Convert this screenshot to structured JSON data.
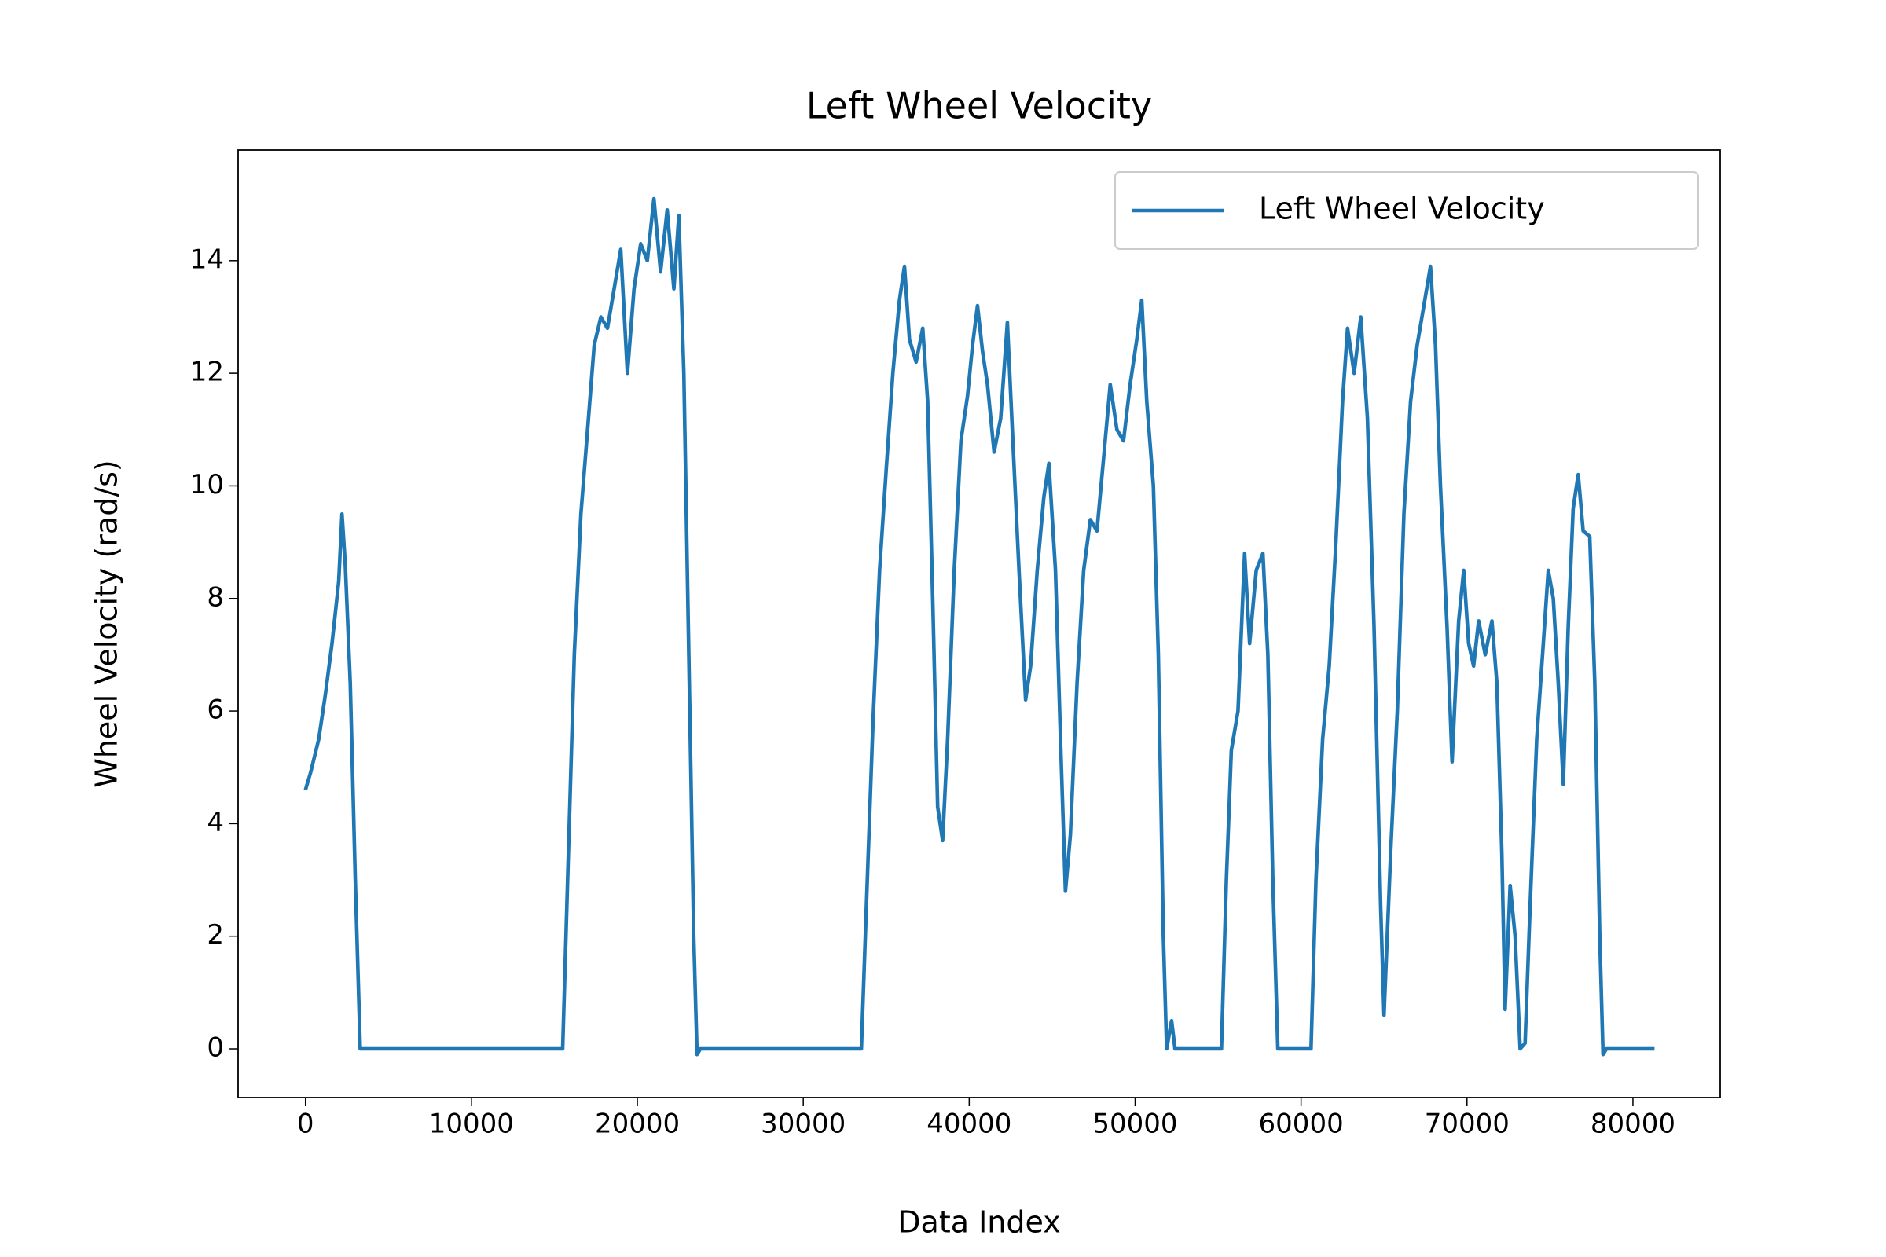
{
  "chart_data": {
    "type": "line",
    "title": "Left Wheel Velocity",
    "x_label": "Data Index",
    "y_label": "Wheel Velocity (rad/s)",
    "xlim": [
      -4060,
      85260
    ],
    "ylim": [
      -0.865,
      15.965
    ],
    "xticks": [
      0,
      10000,
      20000,
      30000,
      40000,
      50000,
      60000,
      70000,
      80000
    ],
    "yticks": [
      0,
      2,
      4,
      6,
      8,
      10,
      12,
      14
    ],
    "legend": "upper right",
    "x": [
      0,
      300,
      800,
      1200,
      1600,
      2000,
      2200,
      2400,
      2700,
      3000,
      3300,
      15500,
      15800,
      16200,
      16600,
      17000,
      17400,
      17800,
      18200,
      18600,
      19000,
      19400,
      19800,
      20200,
      20600,
      21000,
      21400,
      21800,
      22200,
      22500,
      22800,
      23100,
      23400,
      23600,
      23800,
      33500,
      33800,
      34200,
      34600,
      35000,
      35400,
      35800,
      36100,
      36400,
      36800,
      37200,
      37500,
      37800,
      38100,
      38400,
      38700,
      39100,
      39500,
      39900,
      40200,
      40500,
      40800,
      41100,
      41500,
      41900,
      42300,
      42600,
      43000,
      43400,
      43700,
      44100,
      44500,
      44800,
      45200,
      45500,
      45800,
      46100,
      46500,
      46900,
      47300,
      47700,
      48100,
      48500,
      48900,
      49300,
      49700,
      50100,
      50400,
      50700,
      51100,
      51400,
      51700,
      51900,
      52200,
      52400,
      55200,
      55500,
      55800,
      56200,
      56600,
      56900,
      57300,
      57700,
      58000,
      58300,
      58600,
      60600,
      60900,
      61300,
      61700,
      62100,
      62500,
      62800,
      63200,
      63600,
      64000,
      64400,
      64800,
      65000,
      65400,
      65800,
      66200,
      66600,
      67000,
      67400,
      67800,
      68100,
      68400,
      68800,
      69100,
      69500,
      69800,
      70100,
      70400,
      70700,
      71100,
      71500,
      71800,
      72100,
      72300,
      72600,
      72900,
      73200,
      73500,
      73800,
      74200,
      74600,
      74900,
      75200,
      75500,
      75800,
      76100,
      76400,
      76700,
      77000,
      77400,
      77700,
      78000,
      78200,
      78400,
      81300
    ],
    "series": [
      {
        "name": "Left Wheel Velocity",
        "color": "#1f77b4",
        "values": [
          4.6,
          4.9,
          5.5,
          6.3,
          7.2,
          8.3,
          9.5,
          8.6,
          6.5,
          3.0,
          0,
          0,
          3,
          7,
          9.5,
          11,
          12.5,
          13.0,
          12.8,
          13.5,
          14.2,
          12.0,
          13.5,
          14.3,
          14.0,
          15.1,
          13.8,
          14.9,
          13.5,
          14.8,
          12,
          7,
          2,
          -0.1,
          0,
          0,
          2.5,
          5.8,
          8.5,
          10.3,
          12,
          13.3,
          13.9,
          12.6,
          12.2,
          12.8,
          11.5,
          8,
          4.3,
          3.7,
          5.5,
          8.5,
          10.8,
          11.6,
          12.5,
          13.2,
          12.4,
          11.8,
          10.6,
          11.2,
          12.9,
          11,
          8.5,
          6.2,
          6.8,
          8.5,
          9.8,
          10.4,
          8.5,
          5.5,
          2.8,
          3.8,
          6.5,
          8.5,
          9.4,
          9.2,
          10.5,
          11.8,
          11.0,
          10.8,
          11.8,
          12.6,
          13.3,
          11.5,
          10,
          7,
          2,
          0,
          0.5,
          0,
          0,
          3,
          5.3,
          6,
          8.8,
          7.2,
          8.5,
          8.8,
          7,
          3,
          0,
          0,
          3,
          5.5,
          6.8,
          9,
          11.5,
          12.8,
          12.0,
          13.0,
          11.2,
          7.5,
          2.5,
          0.6,
          3.5,
          6,
          9.5,
          11.5,
          12.5,
          13.2,
          13.9,
          12.5,
          10,
          7.5,
          5.1,
          7.6,
          8.5,
          7.2,
          6.8,
          7.6,
          7.0,
          7.6,
          6.5,
          3.5,
          0.7,
          2.9,
          2.0,
          0,
          0.1,
          2.5,
          5.5,
          7.2,
          8.5,
          8.0,
          6.5,
          4.7,
          7.5,
          9.6,
          10.2,
          9.2,
          9.1,
          6.5,
          2,
          -0.1,
          0,
          0
        ]
      }
    ]
  }
}
